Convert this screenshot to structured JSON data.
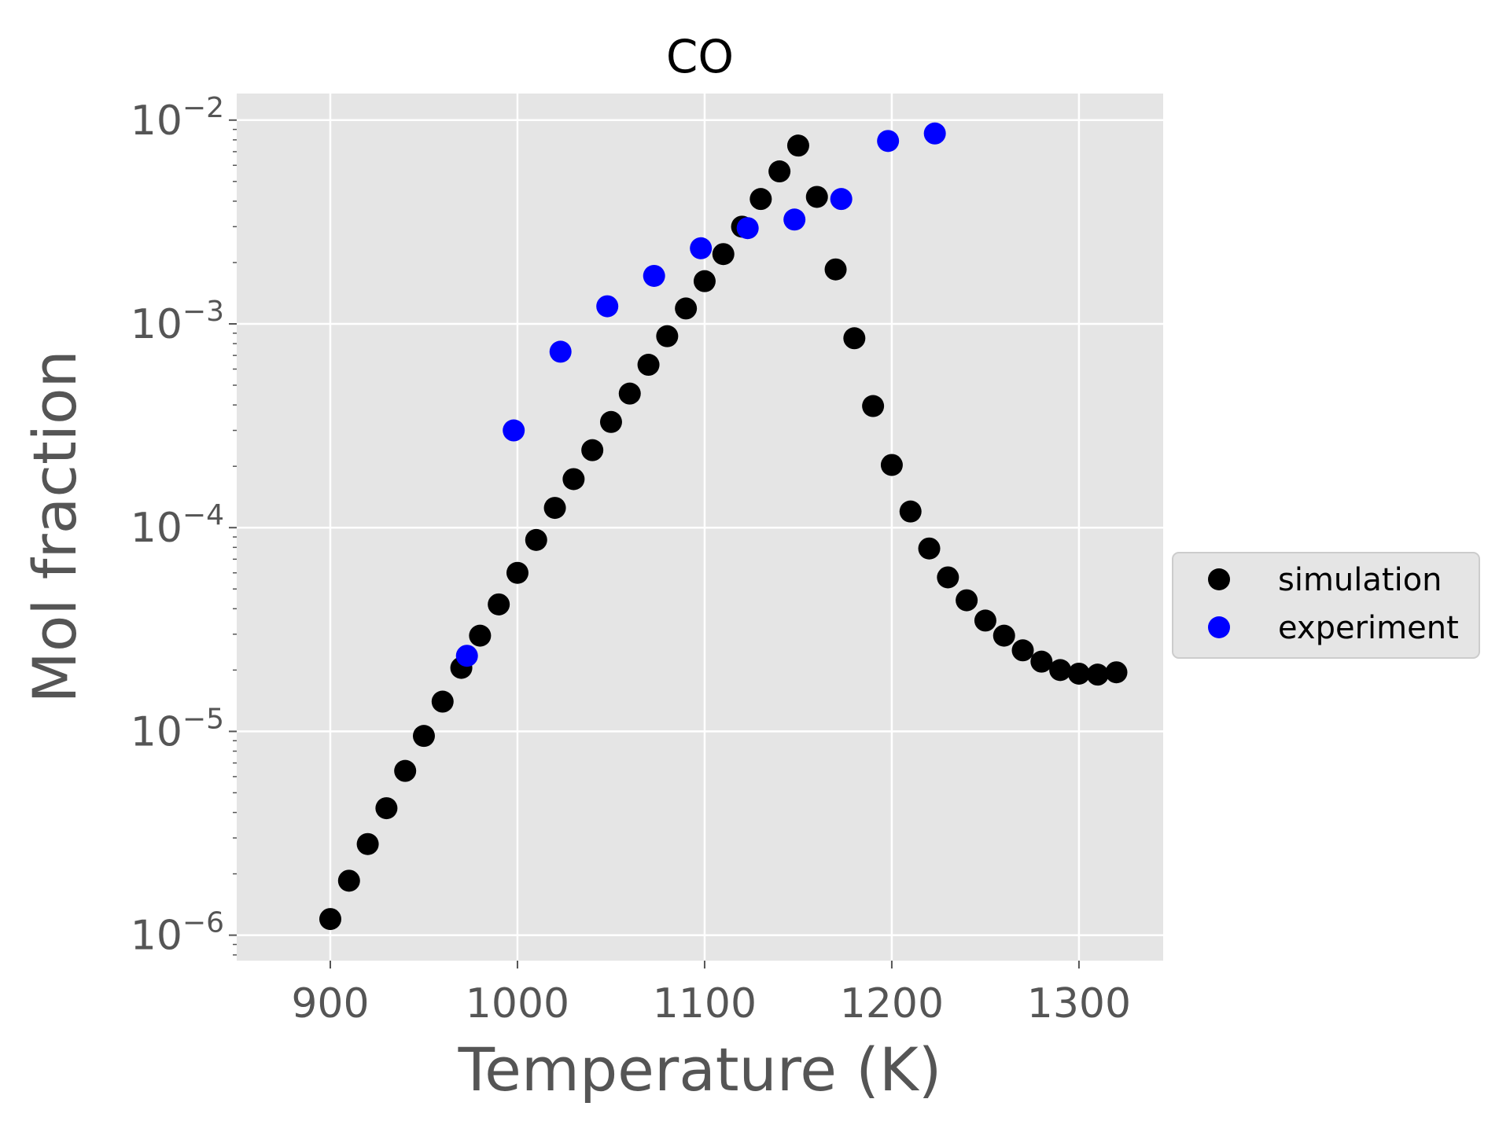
{
  "chart_data": {
    "type": "scatter",
    "title": "CO",
    "xlabel": "Temperature (K)",
    "ylabel": "Mol fraction",
    "yscale": "log",
    "xlim": [
      850,
      1345
    ],
    "ylim": [
      7.5e-07,
      0.0135
    ],
    "xticks": [
      900,
      1000,
      1100,
      1200,
      1300
    ],
    "xtick_labels": [
      "900",
      "1000",
      "1100",
      "1200",
      "1300"
    ],
    "yticks": [
      1e-06,
      1e-05,
      0.0001,
      0.001,
      0.01
    ],
    "ytick_exponents": [
      "−6",
      "−5",
      "−4",
      "−3",
      "−2"
    ],
    "ytick_base": "10",
    "grid": true,
    "legend_position": "center right, outside plot",
    "series": [
      {
        "name": "simulation",
        "color": "#000000",
        "x": [
          900,
          910,
          920,
          930,
          940,
          950,
          960,
          970,
          980,
          990,
          1000,
          1010,
          1020,
          1030,
          1040,
          1050,
          1060,
          1070,
          1080,
          1090,
          1100,
          1110,
          1120,
          1130,
          1140,
          1150,
          1160,
          1170,
          1180,
          1190,
          1200,
          1210,
          1220,
          1230,
          1240,
          1250,
          1260,
          1270,
          1280,
          1290,
          1300,
          1310,
          1320
        ],
        "y": [
          1.2e-06,
          1.85e-06,
          2.8e-06,
          4.2e-06,
          6.4e-06,
          9.5e-06,
          1.4e-05,
          2.05e-05,
          2.95e-05,
          4.2e-05,
          6e-05,
          8.7e-05,
          0.000125,
          0.000173,
          0.00024,
          0.00033,
          0.000455,
          0.00063,
          0.00087,
          0.00119,
          0.00162,
          0.0022,
          0.003,
          0.0041,
          0.0056,
          0.0075,
          0.0042,
          0.00185,
          0.00085,
          0.000395,
          0.000203,
          0.00012,
          7.9e-05,
          5.7e-05,
          4.4e-05,
          3.5e-05,
          2.95e-05,
          2.5e-05,
          2.2e-05,
          2e-05,
          1.92e-05,
          1.9e-05,
          1.95e-05
        ]
      },
      {
        "name": "experiment",
        "color": "#0000ff",
        "x": [
          973,
          998,
          1023,
          1048,
          1073,
          1098,
          1123,
          1148,
          1173,
          1198,
          1223
        ],
        "y": [
          2.35e-05,
          0.0003,
          0.00073,
          0.00122,
          0.00172,
          0.00235,
          0.00295,
          0.00325,
          0.0041,
          0.0079,
          0.0086
        ]
      }
    ]
  }
}
